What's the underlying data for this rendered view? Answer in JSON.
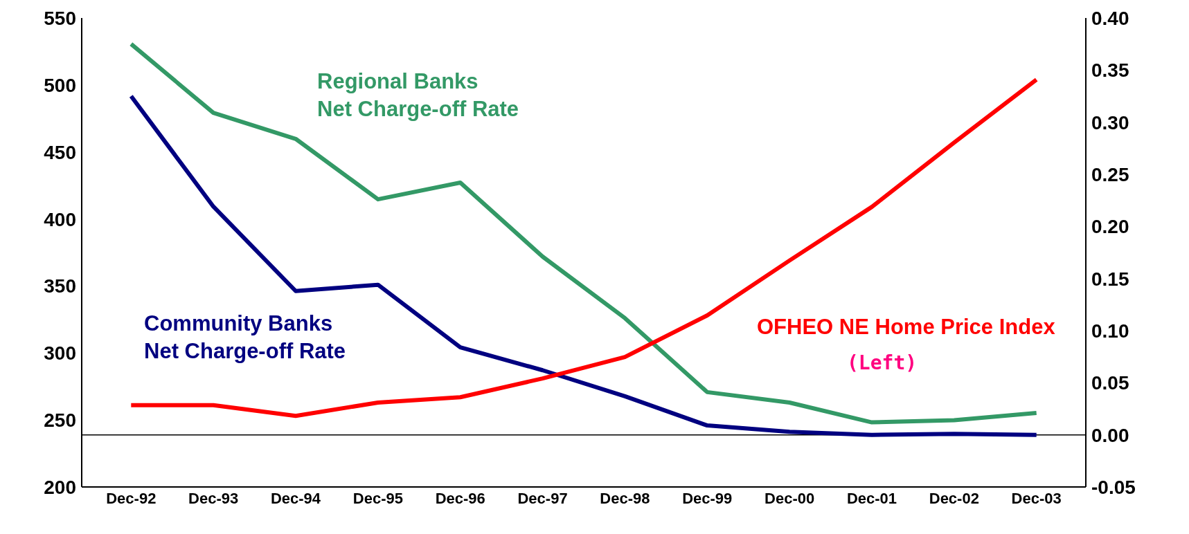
{
  "chart_data": {
    "type": "line",
    "categories": [
      "Dec-92",
      "Dec-93",
      "Dec-94",
      "Dec-95",
      "Dec-96",
      "Dec-97",
      "Dec-98",
      "Dec-99",
      "Dec-00",
      "Dec-01",
      "Dec-02",
      "Dec-03"
    ],
    "series": [
      {
        "name": "Regional Banks Net Charge-off Rate",
        "color": "#339966",
        "axis": "y2",
        "values": [
          0.375,
          0.309,
          0.284,
          0.226,
          0.242,
          0.171,
          0.112,
          0.041,
          0.031,
          0.012,
          0.014,
          0.021
        ]
      },
      {
        "name": "Community Banks Net Charge-off Rate",
        "color": "#000080",
        "axis": "y2",
        "values": [
          0.325,
          0.219,
          0.138,
          0.144,
          0.084,
          0.062,
          0.037,
          0.009,
          0.003,
          0.0,
          0.001,
          0.0
        ]
      },
      {
        "name": "OFHEO NE Home Price Index",
        "color": "#ff0000",
        "values": [
          261,
          261,
          253,
          263,
          267,
          281,
          297,
          328,
          369,
          409,
          457,
          504
        ]
      }
    ],
    "annotations": [
      "(Left)"
    ],
    "ylim": [
      200,
      550
    ],
    "yticks": [
      200,
      250,
      300,
      350,
      400,
      450,
      500,
      550
    ],
    "y2lim": [
      -0.05,
      0.4
    ],
    "y2ticks": [
      {
        "value": -0.05,
        "label": "-0.05"
      },
      {
        "value": 0,
        "label": "0.00"
      },
      {
        "value": 0.05,
        "label": "0.05"
      },
      {
        "value": 0.1,
        "label": "0.10"
      },
      {
        "value": 0.15,
        "label": "0.15"
      },
      {
        "value": 0.2,
        "label": "0.20"
      },
      {
        "value": 0.25,
        "label": "0.25"
      },
      {
        "value": 0.3,
        "label": "0.30"
      },
      {
        "value": 0.35,
        "label": "0.35"
      },
      {
        "value": 0.4,
        "label": "0.40"
      }
    ],
    "ref_lines": [
      {
        "axis": "y2",
        "value": 0,
        "color": "#000000"
      }
    ],
    "marker": "none",
    "line_style": "solid"
  }
}
